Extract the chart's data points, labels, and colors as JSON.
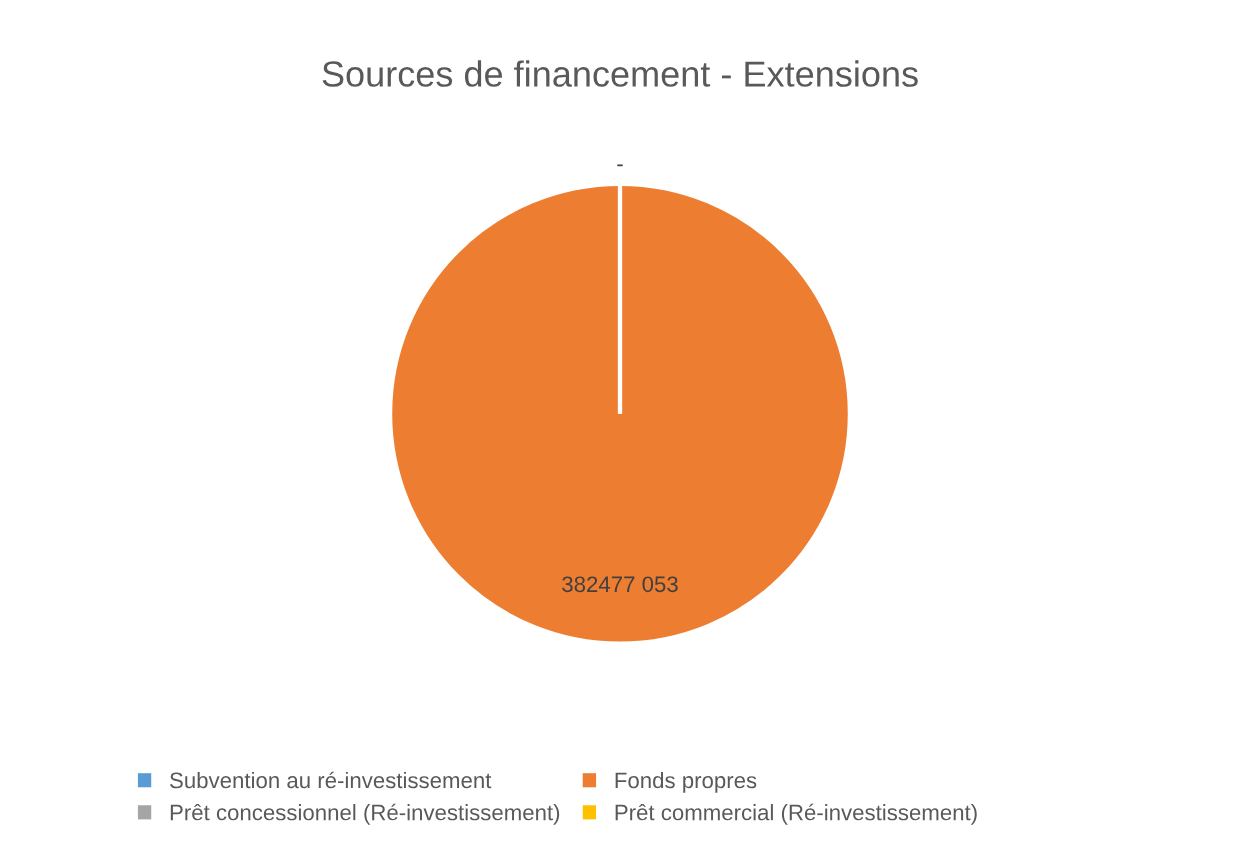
{
  "chart_data": {
    "type": "pie",
    "title": "Sources de financement - Extensions",
    "categories": [
      "Subvention au ré-investissement",
      "Fonds propres",
      "Prêt concessionnel (Ré-investissement)",
      "Prêt commercial (Ré-investissement)"
    ],
    "values": [
      0,
      382477053,
      0,
      0
    ],
    "colors": [
      "#5b9bd5",
      "#ed7d31",
      "#a5a5a5",
      "#ffc000"
    ],
    "value_labels": [
      "-",
      "382477 053",
      null,
      null
    ],
    "legend": "bottom"
  }
}
